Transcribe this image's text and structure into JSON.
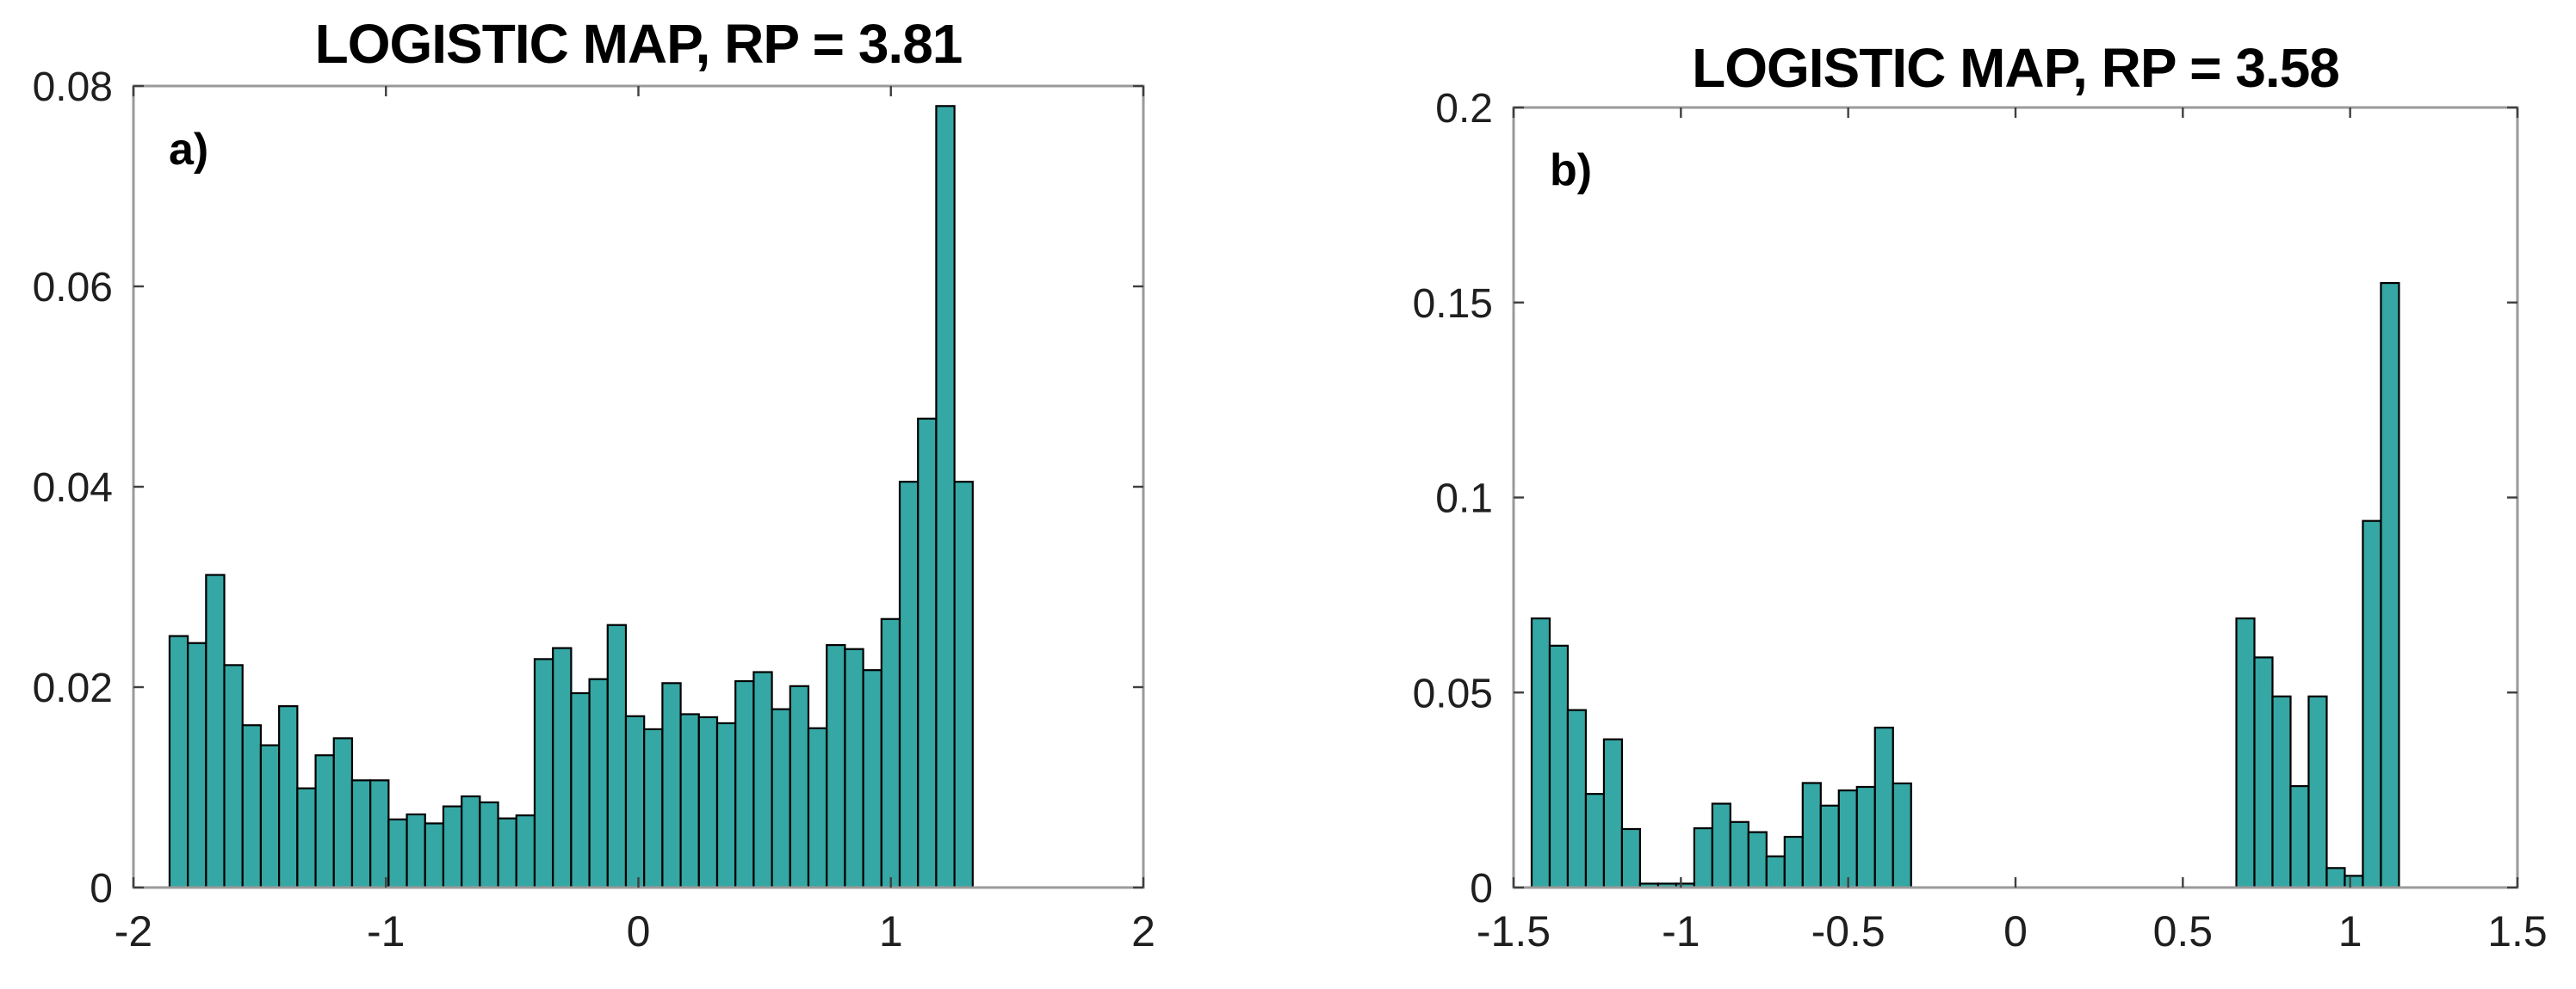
{
  "page": {
    "background": "#ffffff"
  },
  "style": {
    "bar_fill": "#35a7a4",
    "bar_edge": "#000000",
    "box_color": "#9a9a9a",
    "tick_color": "#3f3f3f",
    "label_color": "#1f1f1f",
    "title_color": "#000000"
  },
  "chart_data": [
    {
      "id": "a",
      "type": "bar",
      "kind": "histogram",
      "title": "LOGISTIC MAP, RP = 3.81",
      "panel_label": "a)",
      "xlabel": "",
      "ylabel": "",
      "grid": false,
      "legend": null,
      "xlim": [
        -2,
        2
      ],
      "ylim": [
        0,
        0.08
      ],
      "xtick_values": [
        -2,
        -1,
        0,
        1,
        2
      ],
      "xtick_labels": [
        "-2",
        "-1",
        "0",
        "1",
        "2"
      ],
      "ytick_values": [
        0,
        0.02,
        0.04,
        0.06,
        0.08
      ],
      "ytick_labels": [
        "0",
        "0.02",
        "0.04",
        "0.06",
        "0.08"
      ],
      "bin_start": -1.857,
      "bin_width": 0.0723,
      "values": [
        0.0251,
        0.0244,
        0.0312,
        0.0222,
        0.0162,
        0.0142,
        0.0181,
        0.0099,
        0.0132,
        0.0149,
        0.0107,
        0.0107,
        0.0068,
        0.0073,
        0.0064,
        0.0081,
        0.0091,
        0.0085,
        0.0069,
        0.0072,
        0.0228,
        0.0239,
        0.0194,
        0.0208,
        0.0262,
        0.0171,
        0.0158,
        0.0204,
        0.0173,
        0.017,
        0.0164,
        0.0206,
        0.0215,
        0.0178,
        0.0201,
        0.0159,
        0.0242,
        0.0238,
        0.0217,
        0.0268,
        0.0405,
        0.0468,
        0.078,
        0.0405
      ]
    },
    {
      "id": "b",
      "type": "bar",
      "kind": "histogram",
      "title": "LOGISTIC MAP, RP = 3.58",
      "panel_label": "b)",
      "xlabel": "",
      "ylabel": "",
      "grid": false,
      "legend": null,
      "xlim": [
        -1.5,
        1.5
      ],
      "ylim": [
        0,
        0.2
      ],
      "xtick_values": [
        -1.5,
        -1,
        -0.5,
        0,
        0.5,
        1,
        1.5
      ],
      "xtick_labels": [
        "-1.5",
        "-1",
        "-0.5",
        "0",
        "0.5",
        "1",
        "1.5"
      ],
      "ytick_values": [
        0,
        0.05,
        0.1,
        0.15,
        0.2
      ],
      "ytick_labels": [
        "0",
        "0.05",
        "0.1",
        "0.15",
        "0.2"
      ],
      "bin_start": -1.446,
      "bin_width": 0.054,
      "values": [
        0.069,
        0.062,
        0.0455,
        0.024,
        0.038,
        0.015,
        0.001,
        0.001,
        0.001,
        0.0152,
        0.0215,
        0.0168,
        0.0142,
        0.008,
        0.013,
        0.0268,
        0.021,
        0.0249,
        0.0258,
        0.041,
        0.0267,
        0,
        0,
        0,
        0,
        0,
        0,
        0,
        0,
        0,
        0,
        0,
        0,
        0,
        0,
        0,
        0,
        0,
        0,
        0.069,
        0.059,
        0.049,
        0.026,
        0.049,
        0.005,
        0.003,
        0.094,
        0.155
      ]
    }
  ]
}
